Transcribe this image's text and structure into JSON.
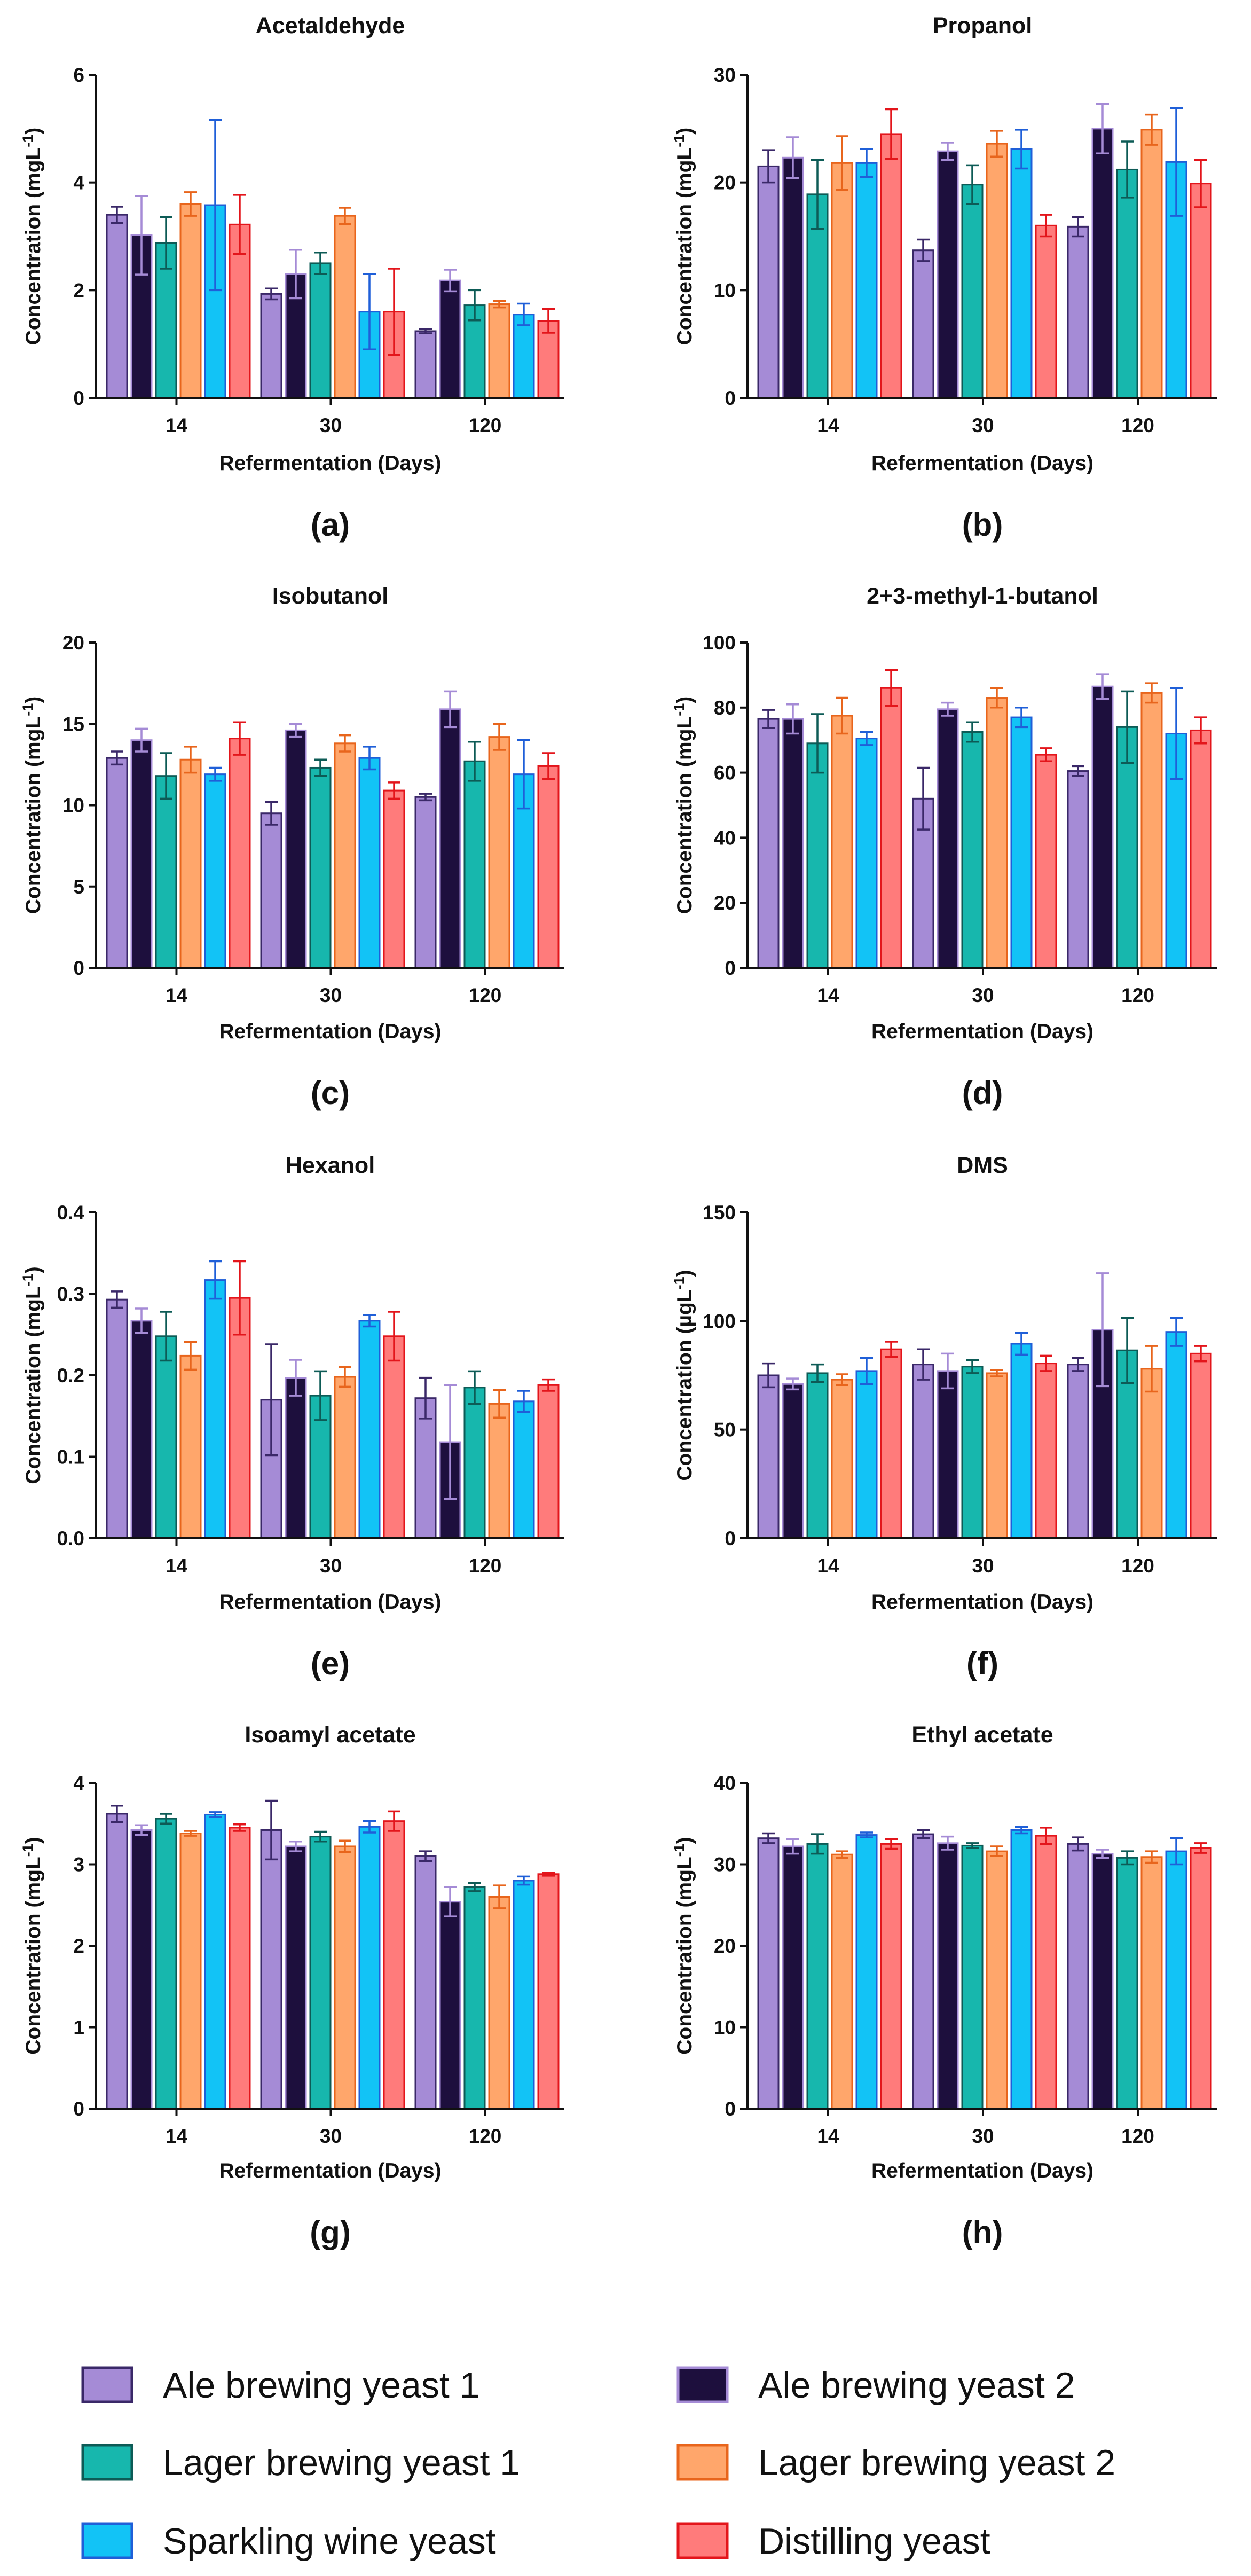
{
  "figure": {
    "legend": [
      {
        "label": "Ale brewing yeast 1",
        "fill": "#a58bd6",
        "stroke": "#3a2868"
      },
      {
        "label": "Ale brewing yeast 2",
        "fill": "#1d0f3d",
        "stroke": "#a58bd6"
      },
      {
        "label": "Lager brewing yeast 1",
        "fill": "#17b7ad",
        "stroke": "#0d5b56"
      },
      {
        "label": "Lager brewing yeast 2",
        "fill": "#ffa66b",
        "stroke": "#e8651c"
      },
      {
        "label": "Sparkling wine yeast",
        "fill": "#12c3f6",
        "stroke": "#1f5fd8"
      },
      {
        "label": "Distilling yeast",
        "fill": "#ff7b7b",
        "stroke": "#e3151b"
      }
    ]
  },
  "chart_data": [
    {
      "type": "bar",
      "panel": "(a)",
      "title": "Acetaldehyde",
      "ylabel": "Concentration (mgL",
      "ylabel_sup": "-1",
      "ylabel_tail": ")",
      "xlabel": "Refermentation (Days)",
      "categories": [
        "14",
        "30",
        "120"
      ],
      "ylim": [
        0,
        6
      ],
      "yticks": [
        "0",
        "2",
        "4",
        "6"
      ],
      "series": [
        {
          "name": "Ale brewing yeast 1",
          "values": [
            3.4,
            1.93,
            1.24
          ],
          "errors": [
            0.15,
            0.1,
            0.04
          ]
        },
        {
          "name": "Ale brewing yeast 2",
          "values": [
            3.02,
            2.3,
            2.18
          ],
          "errors": [
            0.73,
            0.45,
            0.2
          ]
        },
        {
          "name": "Lager brewing yeast 1",
          "values": [
            2.88,
            2.5,
            1.72
          ],
          "errors": [
            0.48,
            0.2,
            0.28
          ]
        },
        {
          "name": "Lager brewing yeast 2",
          "values": [
            3.6,
            3.38,
            1.74
          ],
          "errors": [
            0.22,
            0.15,
            0.06
          ]
        },
        {
          "name": "Sparkling wine yeast",
          "values": [
            3.58,
            1.6,
            1.55
          ],
          "errors": [
            1.58,
            0.7,
            0.2
          ]
        },
        {
          "name": "Distilling yeast",
          "values": [
            3.22,
            1.6,
            1.43
          ],
          "errors": [
            0.55,
            0.8,
            0.22
          ]
        }
      ]
    },
    {
      "type": "bar",
      "panel": "(b)",
      "title": "Propanol",
      "ylabel": "Concentration (mgL",
      "ylabel_sup": "-1",
      "ylabel_tail": ")",
      "xlabel": "Refermentation (Days)",
      "categories": [
        "14",
        "30",
        "120"
      ],
      "ylim": [
        0,
        30
      ],
      "yticks": [
        "0",
        "10",
        "20",
        "30"
      ],
      "series": [
        {
          "name": "Ale brewing yeast 1",
          "values": [
            21.5,
            13.7,
            15.9
          ],
          "errors": [
            1.5,
            1.0,
            0.9
          ]
        },
        {
          "name": "Ale brewing yeast 2",
          "values": [
            22.3,
            22.9,
            25.0
          ],
          "errors": [
            1.9,
            0.8,
            2.3
          ]
        },
        {
          "name": "Lager brewing yeast 1",
          "values": [
            18.9,
            19.8,
            21.2
          ],
          "errors": [
            3.2,
            1.8,
            2.6
          ]
        },
        {
          "name": "Lager brewing yeast 2",
          "values": [
            21.8,
            23.6,
            24.9
          ],
          "errors": [
            2.5,
            1.2,
            1.4
          ]
        },
        {
          "name": "Sparkling wine yeast",
          "values": [
            21.8,
            23.1,
            21.9
          ],
          "errors": [
            1.3,
            1.8,
            5.0
          ]
        },
        {
          "name": "Distilling yeast",
          "values": [
            24.5,
            16.0,
            19.9
          ],
          "errors": [
            2.3,
            1.0,
            2.2
          ]
        }
      ]
    },
    {
      "type": "bar",
      "panel": "(c)",
      "title": "Isobutanol",
      "ylabel": "Concentration (mgL",
      "ylabel_sup": "-1",
      "ylabel_tail": ")",
      "xlabel": "Refermentation (Days)",
      "categories": [
        "14",
        "30",
        "120"
      ],
      "ylim": [
        0,
        20
      ],
      "yticks": [
        "0",
        "5",
        "10",
        "15",
        "20"
      ],
      "series": [
        {
          "name": "Ale brewing yeast 1",
          "values": [
            12.9,
            9.5,
            10.5
          ],
          "errors": [
            0.4,
            0.7,
            0.2
          ]
        },
        {
          "name": "Ale brewing yeast 2",
          "values": [
            14.0,
            14.6,
            15.9
          ],
          "errors": [
            0.7,
            0.4,
            1.1
          ]
        },
        {
          "name": "Lager brewing yeast 1",
          "values": [
            11.8,
            12.3,
            12.7
          ],
          "errors": [
            1.4,
            0.5,
            1.2
          ]
        },
        {
          "name": "Lager brewing yeast 2",
          "values": [
            12.8,
            13.8,
            14.2
          ],
          "errors": [
            0.8,
            0.5,
            0.8
          ]
        },
        {
          "name": "Sparkling wine yeast",
          "values": [
            11.9,
            12.9,
            11.9
          ],
          "errors": [
            0.4,
            0.7,
            2.1
          ]
        },
        {
          "name": "Distilling yeast",
          "values": [
            14.1,
            10.9,
            12.4
          ],
          "errors": [
            1.0,
            0.5,
            0.8
          ]
        }
      ]
    },
    {
      "type": "bar",
      "panel": "(d)",
      "title": "2+3-methyl-1-butanol",
      "ylabel": "Concentration (mgL",
      "ylabel_sup": "-1",
      "ylabel_tail": ")",
      "xlabel": "Refermentation (Days)",
      "categories": [
        "14",
        "30",
        "120"
      ],
      "ylim": [
        0,
        100
      ],
      "yticks": [
        "0",
        "20",
        "40",
        "60",
        "80",
        "100"
      ],
      "series": [
        {
          "name": "Ale brewing yeast 1",
          "values": [
            76.5,
            52.0,
            60.5
          ],
          "errors": [
            2.8,
            9.5,
            1.5
          ]
        },
        {
          "name": "Ale brewing yeast 2",
          "values": [
            76.5,
            79.5,
            86.5
          ],
          "errors": [
            4.5,
            2.0,
            3.8
          ]
        },
        {
          "name": "Lager brewing yeast 1",
          "values": [
            69.0,
            72.5,
            74.0
          ],
          "errors": [
            9.0,
            3.0,
            11.0
          ]
        },
        {
          "name": "Lager brewing yeast 2",
          "values": [
            77.5,
            83.0,
            84.5
          ],
          "errors": [
            5.5,
            3.0,
            3.0
          ]
        },
        {
          "name": "Sparkling wine yeast",
          "values": [
            70.5,
            77.0,
            72.0
          ],
          "errors": [
            2.0,
            3.0,
            14.0
          ]
        },
        {
          "name": "Distilling yeast",
          "values": [
            86.0,
            65.5,
            73.0
          ],
          "errors": [
            5.5,
            2.0,
            4.0
          ]
        }
      ]
    },
    {
      "type": "bar",
      "panel": "(e)",
      "title": "Hexanol",
      "ylabel": "Concentration (mgL",
      "ylabel_sup": "-1",
      "ylabel_tail": ")",
      "xlabel": "Refermentation (Days)",
      "categories": [
        "14",
        "30",
        "120"
      ],
      "ylim": [
        0,
        0.4
      ],
      "yticks": [
        "0.0",
        "0.1",
        "0.2",
        "0.3",
        "0.4"
      ],
      "series": [
        {
          "name": "Ale brewing yeast 1",
          "values": [
            0.293,
            0.17,
            0.172
          ],
          "errors": [
            0.01,
            0.068,
            0.025
          ]
        },
        {
          "name": "Ale brewing yeast 2",
          "values": [
            0.267,
            0.197,
            0.118
          ],
          "errors": [
            0.015,
            0.022,
            0.07
          ]
        },
        {
          "name": "Lager brewing yeast 1",
          "values": [
            0.248,
            0.175,
            0.185
          ],
          "errors": [
            0.03,
            0.03,
            0.02
          ]
        },
        {
          "name": "Lager brewing yeast 2",
          "values": [
            0.224,
            0.198,
            0.165
          ],
          "errors": [
            0.017,
            0.012,
            0.017
          ]
        },
        {
          "name": "Sparkling wine yeast",
          "values": [
            0.317,
            0.267,
            0.168
          ],
          "errors": [
            0.023,
            0.007,
            0.013
          ]
        },
        {
          "name": "Distilling yeast",
          "values": [
            0.295,
            0.248,
            0.188
          ],
          "errors": [
            0.045,
            0.03,
            0.007
          ]
        }
      ]
    },
    {
      "type": "bar",
      "panel": "(f)",
      "title": "DMS",
      "ylabel": "Concentration (µgL",
      "ylabel_sup": "-1",
      "ylabel_tail": ")",
      "xlabel": "Refermentation (Days)",
      "categories": [
        "14",
        "30",
        "120"
      ],
      "ylim": [
        0,
        150
      ],
      "yticks": [
        "0",
        "50",
        "100",
        "150"
      ],
      "series": [
        {
          "name": "Ale brewing yeast 1",
          "values": [
            75.0,
            80.0,
            80.0
          ],
          "errors": [
            5.5,
            7.0,
            3.0
          ]
        },
        {
          "name": "Ale brewing yeast 2",
          "values": [
            71.0,
            77.0,
            96.0
          ],
          "errors": [
            2.5,
            8.0,
            26.0
          ]
        },
        {
          "name": "Lager brewing yeast 1",
          "values": [
            76.0,
            79.0,
            86.5
          ],
          "errors": [
            4.0,
            3.0,
            15.0
          ]
        },
        {
          "name": "Lager brewing yeast 2",
          "values": [
            73.0,
            76.0,
            78.0
          ],
          "errors": [
            2.5,
            1.5,
            10.5
          ]
        },
        {
          "name": "Sparkling wine yeast",
          "values": [
            77.0,
            89.5,
            95.0
          ],
          "errors": [
            6.0,
            5.0,
            6.5
          ]
        },
        {
          "name": "Distilling yeast",
          "values": [
            87.0,
            80.5,
            85.0
          ],
          "errors": [
            3.5,
            3.5,
            3.5
          ]
        }
      ]
    },
    {
      "type": "bar",
      "panel": "(g)",
      "title": "Isoamyl acetate",
      "ylabel": "Concentration (mgL",
      "ylabel_sup": "-1",
      "ylabel_tail": ")",
      "xlabel": "Refermentation (Days)",
      "categories": [
        "14",
        "30",
        "120"
      ],
      "ylim": [
        0,
        4
      ],
      "yticks": [
        "0",
        "1",
        "2",
        "3",
        "4"
      ],
      "series": [
        {
          "name": "Ale brewing yeast 1",
          "values": [
            3.62,
            3.42,
            3.1
          ],
          "errors": [
            0.1,
            0.36,
            0.06
          ]
        },
        {
          "name": "Ale brewing yeast 2",
          "values": [
            3.42,
            3.22,
            2.54
          ],
          "errors": [
            0.06,
            0.06,
            0.18
          ]
        },
        {
          "name": "Lager brewing yeast 1",
          "values": [
            3.56,
            3.34,
            2.72
          ],
          "errors": [
            0.06,
            0.06,
            0.05
          ]
        },
        {
          "name": "Lager brewing yeast 2",
          "values": [
            3.38,
            3.22,
            2.6
          ],
          "errors": [
            0.03,
            0.07,
            0.14
          ]
        },
        {
          "name": "Sparkling wine yeast",
          "values": [
            3.61,
            3.46,
            2.8
          ],
          "errors": [
            0.03,
            0.07,
            0.05
          ]
        },
        {
          "name": "Distilling yeast",
          "values": [
            3.45,
            3.53,
            2.88
          ],
          "errors": [
            0.04,
            0.12,
            0.02
          ]
        }
      ]
    },
    {
      "type": "bar",
      "panel": "(h)",
      "title": "Ethyl acetate",
      "ylabel": "Concentration (mgL",
      "ylabel_sup": "-1",
      "ylabel_tail": ")",
      "xlabel": "Refermentation (Days)",
      "categories": [
        "14",
        "30",
        "120"
      ],
      "ylim": [
        0,
        40
      ],
      "yticks": [
        "0",
        "10",
        "20",
        "30",
        "40"
      ],
      "series": [
        {
          "name": "Ale brewing yeast 1",
          "values": [
            33.2,
            33.7,
            32.5
          ],
          "errors": [
            0.6,
            0.5,
            0.8
          ]
        },
        {
          "name": "Ale brewing yeast 2",
          "values": [
            32.2,
            32.6,
            31.3
          ],
          "errors": [
            0.9,
            0.8,
            0.5
          ]
        },
        {
          "name": "Lager brewing yeast 1",
          "values": [
            32.5,
            32.3,
            30.8
          ],
          "errors": [
            1.2,
            0.3,
            0.8
          ]
        },
        {
          "name": "Lager brewing yeast 2",
          "values": [
            31.2,
            31.6,
            30.9
          ],
          "errors": [
            0.4,
            0.6,
            0.7
          ]
        },
        {
          "name": "Sparkling wine yeast",
          "values": [
            33.6,
            34.2,
            31.6
          ],
          "errors": [
            0.3,
            0.4,
            1.6
          ]
        },
        {
          "name": "Distilling yeast",
          "values": [
            32.5,
            33.5,
            32.0
          ],
          "errors": [
            0.6,
            1.0,
            0.6
          ]
        }
      ]
    }
  ]
}
